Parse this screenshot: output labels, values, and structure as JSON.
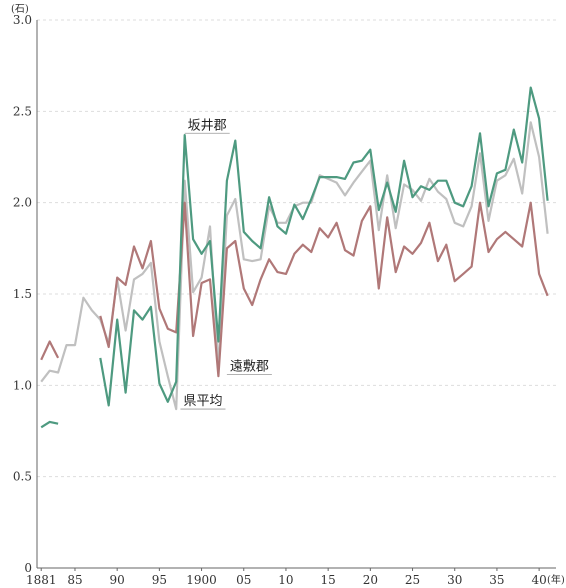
{
  "chart_data": {
    "type": "line",
    "y_unit": "(石)",
    "x_unit": "(年)",
    "ylim": [
      0,
      3.0
    ],
    "xlim": [
      1880.5,
      1942
    ],
    "grid": "horizontal dashed",
    "y_ticks": [
      {
        "v": 0,
        "label": "0"
      },
      {
        "v": 0.5,
        "label": "0.5"
      },
      {
        "v": 1.0,
        "label": "1.0"
      },
      {
        "v": 1.5,
        "label": "1.5"
      },
      {
        "v": 2.0,
        "label": "2.0"
      },
      {
        "v": 2.5,
        "label": "2.5"
      },
      {
        "v": 3.0,
        "label": "3.0"
      }
    ],
    "x_ticks": [
      {
        "v": 1881,
        "label": "1881"
      },
      {
        "v": 1885,
        "label": "85"
      },
      {
        "v": 1890,
        "label": "90"
      },
      {
        "v": 1895,
        "label": "95"
      },
      {
        "v": 1900,
        "label": "1900"
      },
      {
        "v": 1905,
        "label": "05"
      },
      {
        "v": 1910,
        "label": "10"
      },
      {
        "v": 1915,
        "label": "15"
      },
      {
        "v": 1920,
        "label": "20"
      },
      {
        "v": 1925,
        "label": "25"
      },
      {
        "v": 1930,
        "label": "30"
      },
      {
        "v": 1935,
        "label": "35"
      },
      {
        "v": 1940,
        "label": "40"
      }
    ],
    "series": [
      {
        "name": "県平均",
        "color": "#c0c0c0",
        "label_year": 1897.5,
        "label_value": 0.87,
        "points": [
          [
            1881,
            1.02
          ],
          [
            1882,
            1.08
          ],
          [
            1883,
            1.07
          ],
          [
            1884,
            1.22
          ],
          [
            1885,
            1.22
          ],
          [
            1886,
            1.48
          ],
          [
            1887,
            1.41
          ],
          [
            1888,
            1.36
          ],
          [
            1889,
            1.23
          ],
          [
            1890,
            1.58
          ],
          [
            1891,
            1.3
          ],
          [
            1892,
            1.58
          ],
          [
            1893,
            1.61
          ],
          [
            1894,
            1.67
          ],
          [
            1895,
            1.24
          ],
          [
            1896,
            1.05
          ],
          [
            1897,
            0.87
          ],
          [
            1898,
            2.12
          ],
          [
            1899,
            1.51
          ],
          [
            1900,
            1.59
          ],
          [
            1901,
            1.87
          ],
          [
            1902,
            1.1
          ],
          [
            1903,
            1.93
          ],
          [
            1904,
            2.02
          ],
          [
            1905,
            1.69
          ],
          [
            1906,
            1.68
          ],
          [
            1907,
            1.69
          ],
          [
            1908,
            1.98
          ],
          [
            1909,
            1.89
          ],
          [
            1910,
            1.89
          ],
          [
            1911,
            1.98
          ],
          [
            1912,
            2.0
          ],
          [
            1913,
            2.0
          ],
          [
            1914,
            2.15
          ],
          [
            1915,
            2.13
          ],
          [
            1916,
            2.11
          ],
          [
            1917,
            2.04
          ],
          [
            1918,
            2.11
          ],
          [
            1919,
            2.17
          ],
          [
            1920,
            2.23
          ],
          [
            1921,
            1.85
          ],
          [
            1922,
            2.15
          ],
          [
            1923,
            1.86
          ],
          [
            1924,
            2.1
          ],
          [
            1925,
            2.07
          ],
          [
            1926,
            2.01
          ],
          [
            1927,
            2.13
          ],
          [
            1928,
            2.06
          ],
          [
            1929,
            2.02
          ],
          [
            1930,
            1.89
          ],
          [
            1931,
            1.87
          ],
          [
            1932,
            1.98
          ],
          [
            1933,
            2.27
          ],
          [
            1934,
            1.9
          ],
          [
            1935,
            2.12
          ],
          [
            1936,
            2.15
          ],
          [
            1937,
            2.24
          ],
          [
            1938,
            2.05
          ],
          [
            1939,
            2.44
          ],
          [
            1940,
            2.25
          ],
          [
            1941,
            1.83
          ]
        ]
      },
      {
        "name": "遠敷郡",
        "color": "#b07878",
        "label_year": 1903,
        "label_value": 1.06,
        "points": [
          [
            1881,
            1.14
          ],
          [
            1882,
            1.24
          ],
          [
            1883,
            1.15
          ],
          [
            1884,
            null
          ],
          [
            1885,
            null
          ],
          [
            1886,
            null
          ],
          [
            1887,
            null
          ],
          [
            1888,
            1.38
          ],
          [
            1889,
            1.21
          ],
          [
            1890,
            1.59
          ],
          [
            1891,
            1.55
          ],
          [
            1892,
            1.76
          ],
          [
            1893,
            1.64
          ],
          [
            1894,
            1.79
          ],
          [
            1895,
            1.42
          ],
          [
            1896,
            1.31
          ],
          [
            1897,
            1.29
          ],
          [
            1898,
            2.0
          ],
          [
            1899,
            1.27
          ],
          [
            1900,
            1.56
          ],
          [
            1901,
            1.58
          ],
          [
            1902,
            1.05
          ],
          [
            1903,
            1.75
          ],
          [
            1904,
            1.79
          ],
          [
            1905,
            1.53
          ],
          [
            1906,
            1.44
          ],
          [
            1907,
            1.58
          ],
          [
            1908,
            1.69
          ],
          [
            1909,
            1.62
          ],
          [
            1910,
            1.61
          ],
          [
            1911,
            1.72
          ],
          [
            1912,
            1.77
          ],
          [
            1913,
            1.73
          ],
          [
            1914,
            1.86
          ],
          [
            1915,
            1.81
          ],
          [
            1916,
            1.89
          ],
          [
            1917,
            1.74
          ],
          [
            1918,
            1.71
          ],
          [
            1919,
            1.9
          ],
          [
            1920,
            1.98
          ],
          [
            1921,
            1.53
          ],
          [
            1922,
            1.92
          ],
          [
            1923,
            1.62
          ],
          [
            1924,
            1.76
          ],
          [
            1925,
            1.72
          ],
          [
            1926,
            1.78
          ],
          [
            1927,
            1.89
          ],
          [
            1928,
            1.68
          ],
          [
            1929,
            1.77
          ],
          [
            1930,
            1.57
          ],
          [
            1931,
            1.61
          ],
          [
            1932,
            1.65
          ],
          [
            1933,
            2.0
          ],
          [
            1934,
            1.73
          ],
          [
            1935,
            1.8
          ],
          [
            1936,
            1.84
          ],
          [
            1937,
            1.8
          ],
          [
            1938,
            1.76
          ],
          [
            1939,
            2.0
          ],
          [
            1940,
            1.61
          ],
          [
            1941,
            1.49
          ]
        ]
      },
      {
        "name": "坂井郡",
        "color": "#4e9a80",
        "label_year": 1898,
        "label_value": 2.38,
        "points": [
          [
            1881,
            0.77
          ],
          [
            1882,
            0.8
          ],
          [
            1883,
            0.79
          ],
          [
            1884,
            null
          ],
          [
            1885,
            null
          ],
          [
            1886,
            null
          ],
          [
            1887,
            null
          ],
          [
            1888,
            1.15
          ],
          [
            1889,
            0.89
          ],
          [
            1890,
            1.36
          ],
          [
            1891,
            0.96
          ],
          [
            1892,
            1.41
          ],
          [
            1893,
            1.36
          ],
          [
            1894,
            1.43
          ],
          [
            1895,
            1.01
          ],
          [
            1896,
            0.91
          ],
          [
            1897,
            1.02
          ],
          [
            1898,
            2.37
          ],
          [
            1899,
            1.8
          ],
          [
            1900,
            1.72
          ],
          [
            1901,
            1.79
          ],
          [
            1902,
            1.24
          ],
          [
            1903,
            2.12
          ],
          [
            1904,
            2.34
          ],
          [
            1905,
            1.84
          ],
          [
            1906,
            1.79
          ],
          [
            1907,
            1.75
          ],
          [
            1908,
            2.03
          ],
          [
            1909,
            1.87
          ],
          [
            1910,
            1.83
          ],
          [
            1911,
            1.99
          ],
          [
            1912,
            1.91
          ],
          [
            1913,
            2.02
          ],
          [
            1914,
            2.14
          ],
          [
            1915,
            2.14
          ],
          [
            1916,
            2.14
          ],
          [
            1917,
            2.13
          ],
          [
            1918,
            2.22
          ],
          [
            1919,
            2.23
          ],
          [
            1920,
            2.29
          ],
          [
            1921,
            1.96
          ],
          [
            1922,
            2.11
          ],
          [
            1923,
            1.95
          ],
          [
            1924,
            2.23
          ],
          [
            1925,
            2.03
          ],
          [
            1926,
            2.09
          ],
          [
            1927,
            2.07
          ],
          [
            1928,
            2.12
          ],
          [
            1929,
            2.12
          ],
          [
            1930,
            2.0
          ],
          [
            1931,
            1.98
          ],
          [
            1932,
            2.09
          ],
          [
            1933,
            2.38
          ],
          [
            1934,
            1.98
          ],
          [
            1935,
            2.16
          ],
          [
            1936,
            2.18
          ],
          [
            1937,
            2.4
          ],
          [
            1938,
            2.22
          ],
          [
            1939,
            2.63
          ],
          [
            1940,
            2.46
          ],
          [
            1941,
            2.01
          ]
        ]
      }
    ]
  }
}
